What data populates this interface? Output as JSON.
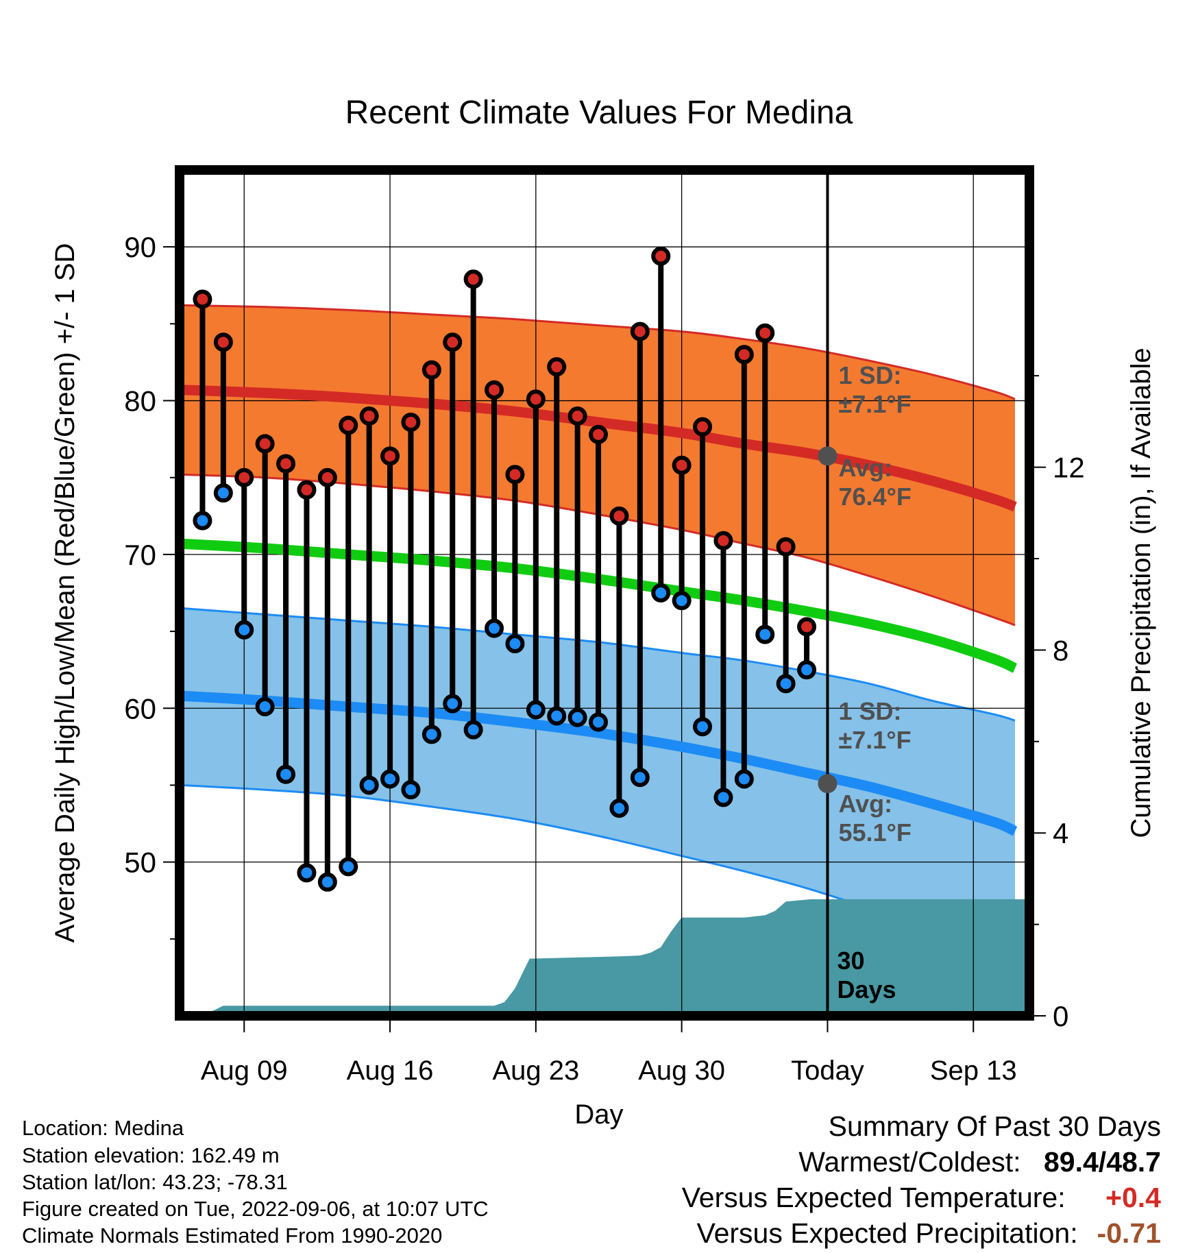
{
  "chart_data": {
    "type": "line",
    "title": "Recent Climate Values For Medina",
    "xlabel": "Day",
    "ylabel": "Average Daily High/Low/Mean (Red/Blue/Green) +/- 1 SD",
    "y2label": "Cumulative Precipitation (in), If Available",
    "ylim": [
      40,
      95
    ],
    "y2lim": [
      0,
      18.5
    ],
    "y_ticks": [
      50,
      60,
      70,
      80,
      90
    ],
    "y2_ticks": [
      0,
      4,
      8,
      12
    ],
    "x_tick_labels": [
      {
        "day": 9,
        "label": "Aug 09"
      },
      {
        "day": 16,
        "label": "Aug 16"
      },
      {
        "day": 23,
        "label": "Aug 23"
      },
      {
        "day": 30,
        "label": "Aug 30"
      },
      {
        "day": 37,
        "label": "Today"
      },
      {
        "day": 44,
        "label": "Sep 13"
      }
    ],
    "x_axis_note": "x values are day-of-August (Aug 32 = Sep 01)",
    "today_day": 37,
    "grid": true,
    "daily": [
      {
        "day": 7,
        "high": 86.6,
        "low": 72.2
      },
      {
        "day": 8,
        "high": 83.8,
        "low": 74.0
      },
      {
        "day": 9,
        "high": 75.0,
        "low": 65.1
      },
      {
        "day": 10,
        "high": 77.2,
        "low": 60.1
      },
      {
        "day": 11,
        "high": 75.9,
        "low": 55.7
      },
      {
        "day": 12,
        "high": 74.2,
        "low": 49.3
      },
      {
        "day": 13,
        "high": 75.0,
        "low": 48.7
      },
      {
        "day": 14,
        "high": 78.4,
        "low": 49.7
      },
      {
        "day": 15,
        "high": 79.0,
        "low": 55.0
      },
      {
        "day": 16,
        "high": 76.4,
        "low": 55.4
      },
      {
        "day": 17,
        "high": 78.6,
        "low": 54.7
      },
      {
        "day": 18,
        "high": 82.0,
        "low": 58.3
      },
      {
        "day": 19,
        "high": 83.8,
        "low": 60.3
      },
      {
        "day": 20,
        "high": 87.9,
        "low": 58.6
      },
      {
        "day": 21,
        "high": 80.7,
        "low": 65.2
      },
      {
        "day": 22,
        "high": 75.2,
        "low": 64.2
      },
      {
        "day": 23,
        "high": 80.1,
        "low": 59.9
      },
      {
        "day": 24,
        "high": 82.2,
        "low": 59.5
      },
      {
        "day": 25,
        "high": 79.0,
        "low": 59.4
      },
      {
        "day": 26,
        "high": 77.8,
        "low": 59.1
      },
      {
        "day": 27,
        "high": 72.5,
        "low": 53.5
      },
      {
        "day": 28,
        "high": 84.5,
        "low": 55.5
      },
      {
        "day": 29,
        "high": 89.4,
        "low": 67.5
      },
      {
        "day": 30,
        "high": 75.8,
        "low": 67.0
      },
      {
        "day": 31,
        "high": 78.3,
        "low": 58.8
      },
      {
        "day": 32,
        "high": 70.9,
        "low": 54.2
      },
      {
        "day": 33,
        "high": 83.0,
        "low": 55.4
      },
      {
        "day": 34,
        "high": 84.4,
        "low": 64.8
      },
      {
        "day": 35,
        "high": 70.5,
        "low": 61.6
      },
      {
        "day": 36,
        "high": 65.3,
        "low": 62.5
      }
    ],
    "normals": {
      "days": [
        6,
        10,
        14,
        18,
        22,
        26,
        30,
        33,
        36,
        39,
        42,
        45,
        46
      ],
      "high_avg": [
        80.7,
        80.5,
        80.2,
        79.8,
        79.3,
        78.6,
        77.9,
        77.2,
        76.6,
        75.8,
        74.8,
        73.6,
        73.1
      ],
      "mean_avg": [
        70.7,
        70.4,
        70.0,
        69.6,
        69.1,
        68.4,
        67.6,
        67.0,
        66.3,
        65.5,
        64.5,
        63.2,
        62.6
      ],
      "low_avg": [
        60.8,
        60.5,
        60.1,
        59.7,
        59.1,
        58.4,
        57.5,
        56.7,
        55.8,
        54.9,
        53.8,
        52.6,
        52.0
      ],
      "high_upper": [
        86.2,
        86.1,
        85.9,
        85.6,
        85.3,
        84.9,
        84.5,
        84.0,
        83.4,
        82.6,
        81.7,
        80.6,
        80.1
      ],
      "high_lower": [
        75.2,
        75.0,
        74.6,
        74.1,
        73.5,
        72.6,
        71.6,
        70.7,
        69.8,
        68.6,
        67.3,
        65.9,
        65.4
      ],
      "low_upper": [
        66.5,
        66.1,
        65.7,
        65.3,
        64.8,
        64.3,
        63.6,
        63.1,
        62.4,
        61.6,
        60.5,
        59.6,
        59.2
      ],
      "low_lower": [
        55.0,
        54.7,
        54.3,
        53.6,
        52.8,
        51.7,
        50.4,
        49.4,
        48.3,
        47.0,
        45.7,
        44.3,
        43.8
      ]
    },
    "precip_cumulative": {
      "days": [
        7,
        8,
        21,
        21.5,
        22,
        22.7,
        27,
        28,
        28.5,
        29,
        29.5,
        30,
        33,
        34,
        34.5,
        35,
        36.2,
        47
      ],
      "values": [
        0,
        0.22,
        0.22,
        0.3,
        0.6,
        1.25,
        1.3,
        1.32,
        1.38,
        1.5,
        1.85,
        2.15,
        2.15,
        2.2,
        2.3,
        2.5,
        2.55,
        2.55
      ]
    },
    "annotations": {
      "high_sd": {
        "line1": "1 SD:",
        "line2": "±7.1°F"
      },
      "high_avg": {
        "line1": "Avg:",
        "line2": "76.4°F"
      },
      "low_sd": {
        "line1": "1 SD:",
        "line2": "±7.1°F"
      },
      "low_avg": {
        "line1": "Avg:",
        "line2": "55.1°F"
      },
      "period_line1": "30",
      "period_line2": "Days"
    },
    "today_high_avg": 76.4,
    "today_low_avg": 55.1,
    "colors": {
      "high_band": "#f47a30",
      "low_band": "#85c1e8",
      "high_line": "#d42a25",
      "low_line": "#1c8bf5",
      "mean_line": "#10cc10",
      "precip": "#4899a3",
      "high_marker": "#d42a25",
      "low_marker": "#1c8bf5"
    }
  },
  "footer": {
    "location": "Location: Medina",
    "elevation": "Station elevation: 162.49 m",
    "latlon": "Station lat/lon: 43.23; -78.31",
    "created": "Figure created on Tue, 2022-09-06, at 10:07 UTC",
    "normals": "Climate Normals Estimated From 1990-2020"
  },
  "summary": {
    "title": "Summary Of Past 30 Days",
    "warm_cold_label": "Warmest/Coldest:",
    "warm_value": "89.4",
    "slash": "/",
    "cold_value": "48.7",
    "temp_label": "Versus Expected Temperature:",
    "temp_value": "+0.4",
    "temp_color": "#d42a25",
    "precip_label": "Versus Expected Precipitation:",
    "precip_value": "-0.71",
    "precip_color": "#a0522d"
  }
}
